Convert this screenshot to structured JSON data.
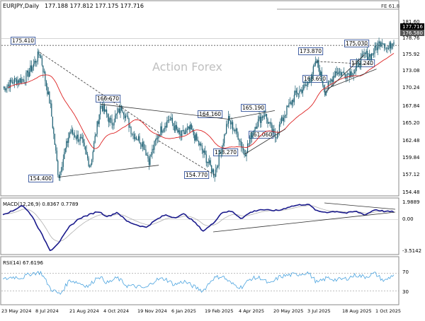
{
  "header": {
    "symbol": "EURJPY,Daily",
    "ohlc": "177.188 177.812 177.175 177.716"
  },
  "watermark": "Action Forex",
  "fib_label": "FE 61.8",
  "price_panel": {
    "ticks": [
      "181.60",
      "178.76",
      "175.92",
      "173.08",
      "170.24",
      "167.84",
      "165.20",
      "162.48",
      "159.84",
      "157.12",
      "154.48",
      "151.84"
    ],
    "last_price": "177.716",
    "ref_price": "176.580"
  },
  "annotations": [
    {
      "id": "175410",
      "text": "175.410"
    },
    {
      "id": "154400",
      "text": "154.400"
    },
    {
      "id": "166670",
      "text": "166.670"
    },
    {
      "id": "164160",
      "text": "164.160"
    },
    {
      "id": "165190",
      "text": "165.190"
    },
    {
      "id": "161060",
      "text": "161.060"
    },
    {
      "id": "158270",
      "text": "158.270"
    },
    {
      "id": "154770",
      "text": "154.770"
    },
    {
      "id": "173870",
      "text": "173.870"
    },
    {
      "id": "168690",
      "text": "168.690"
    },
    {
      "id": "175030",
      "text": "175.030"
    },
    {
      "id": "172240",
      "text": "172.240"
    }
  ],
  "macd_panel": {
    "label": "MACD(12,26,9) 0.8367 0.7789",
    "ticks": [
      "1.9889",
      "0.00",
      "-3.5142"
    ]
  },
  "rsi_panel": {
    "label": "RSI(14) 67.6196",
    "ticks": [
      "70",
      "30"
    ]
  },
  "x_ticks": [
    "23 May 2024",
    "8 Jul 2024",
    "21 Aug 2024",
    "4 Oct 2024",
    "19 Nov 2024",
    "6 Jan 2025",
    "19 Feb 2025",
    "4 Apr 2025",
    "20 May 2025",
    "3 Jul 2025",
    "18 Aug 2025",
    "1 Oct 2025"
  ],
  "colors": {
    "candles": "#1b5f73",
    "moving_average": "#dd2222",
    "macd_line": "#1a1a8c",
    "signal_line": "#b0b0b0",
    "rsi_line": "#4aa3df",
    "trendlines": "#333333"
  },
  "chart_data": [
    {
      "type": "candlestick",
      "title": "EURJPY,Daily",
      "ylim": [
        151.84,
        181.6
      ],
      "series": [
        {
          "name": "price",
          "values": [
            [
              "2024-05-23",
              169.4
            ],
            [
              "2024-06-07",
              170.6
            ],
            [
              "2024-06-21",
              170.9
            ],
            [
              "2024-07-03",
              173.4
            ],
            [
              "2024-07-11",
              175.41
            ],
            [
              "2024-07-25",
              166.5
            ],
            [
              "2024-08-05",
              154.4
            ],
            [
              "2024-08-20",
              162.1
            ],
            [
              "2024-09-04",
              160.6
            ],
            [
              "2024-09-16",
              156.2
            ],
            [
              "2024-09-30",
              166.67
            ],
            [
              "2024-10-14",
              163.4
            ],
            [
              "2024-10-28",
              166.3
            ],
            [
              "2024-11-11",
              161.8
            ],
            [
              "2024-11-25",
              160.1
            ],
            [
              "2024-12-03",
              157.2
            ],
            [
              "2024-12-16",
              161.9
            ],
            [
              "2024-12-30",
              164.3
            ],
            [
              "2025-01-13",
              161.3
            ],
            [
              "2025-01-27",
              162.5
            ],
            [
              "2025-02-10",
              159.3
            ],
            [
              "2025-02-28",
              154.77
            ],
            [
              "2025-03-11",
              160.3
            ],
            [
              "2025-03-18",
              164.16
            ],
            [
              "2025-04-01",
              161.2
            ],
            [
              "2025-04-09",
              158.27
            ],
            [
              "2025-04-22",
              162.9
            ],
            [
              "2025-05-05",
              165.19
            ],
            [
              "2025-05-19",
              161.06
            ],
            [
              "2025-06-02",
              165.3
            ],
            [
              "2025-06-16",
              168.4
            ],
            [
              "2025-07-01",
              169.9
            ],
            [
              "2025-07-14",
              173.87
            ],
            [
              "2025-07-25",
              168.69
            ],
            [
              "2025-08-08",
              172.3
            ],
            [
              "2025-08-20",
              171.7
            ],
            [
              "2025-09-02",
              172.24
            ],
            [
              "2025-09-15",
              175.03
            ],
            [
              "2025-09-24",
              174.9
            ],
            [
              "2025-10-08",
              177.6
            ],
            [
              "2025-10-16",
              175.8
            ],
            [
              "2025-10-24",
              177.716
            ]
          ]
        }
      ]
    },
    {
      "type": "line",
      "title": "MACD(12,26,9) 0.8367 0.7789",
      "ylim": [
        -3.5142,
        1.9889
      ],
      "series": [
        {
          "name": "MACD",
          "values": [
            0.6,
            0.9,
            1.6,
            0.5,
            -1.5,
            -3.5,
            -2.4,
            -0.8,
            0.1,
            0.5,
            0.9,
            0.3,
            0.8,
            -0.2,
            -0.6,
            -0.9,
            -0.1,
            0.5,
            0.2,
            0.6,
            -0.2,
            -1.3,
            -0.5,
            0.8,
            0.9,
            0.1,
            0.8,
            1.1,
            1.0,
            1.0,
            1.4,
            1.6,
            1.7,
            0.9,
            0.8,
            0.9,
            0.7,
            0.9,
            0.5,
            1.1,
            0.9,
            0.84
          ]
        }
      ]
    },
    {
      "type": "line",
      "title": "RSI(14) 67.6196",
      "ylim": [
        0,
        100
      ],
      "series": [
        {
          "name": "RSI",
          "values": [
            55,
            62,
            60,
            70,
            72,
            35,
            22,
            55,
            48,
            40,
            64,
            48,
            60,
            42,
            40,
            36,
            55,
            58,
            44,
            52,
            40,
            30,
            58,
            64,
            46,
            38,
            58,
            60,
            45,
            62,
            66,
            68,
            72,
            48,
            60,
            55,
            58,
            66,
            62,
            70,
            52,
            67.6
          ]
        }
      ]
    }
  ]
}
